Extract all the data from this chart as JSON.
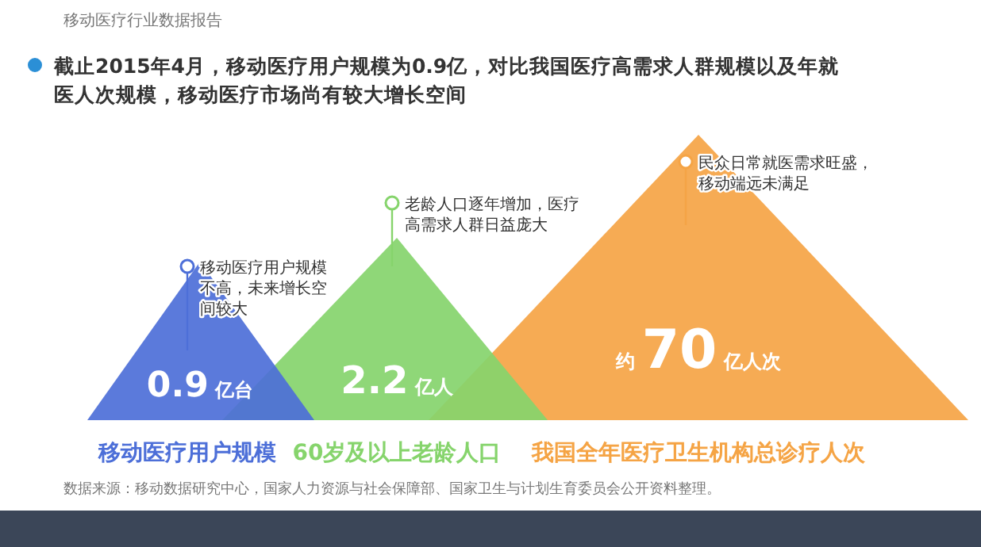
{
  "chart_data": {
    "type": "other",
    "subtitle": "移动医疗行业数据报告",
    "title": "截止2015年4月，移动医疗用户规模为0.9亿，对比我国医疗高需求人群规模以及年就医人次规模，移动医疗市场尚有较大增长空间",
    "categories": [
      "移动医疗用户规模",
      "60岁及以上老龄人口",
      "我国全年医疗卫生机构总诊疗人次"
    ],
    "values": [
      0.9,
      2.2,
      70
    ],
    "value_labels": [
      "0.9亿台",
      "2.2亿人",
      "约70亿人次"
    ],
    "colors": [
      "#4d6fd8",
      "#86d46c",
      "#f5a445"
    ],
    "annotations": [
      "移动医疗用户规模不高，未来增长空间较大",
      "老龄人口逐年增加，医疗高需求人群日益庞大",
      "民众日常就医需求旺盛，移动端远未满足",
      "数据来源：移动数据研究中心，国家人力资源与社会保障部、国家卫生与计划生育委员会公开资料整理。"
    ]
  }
}
